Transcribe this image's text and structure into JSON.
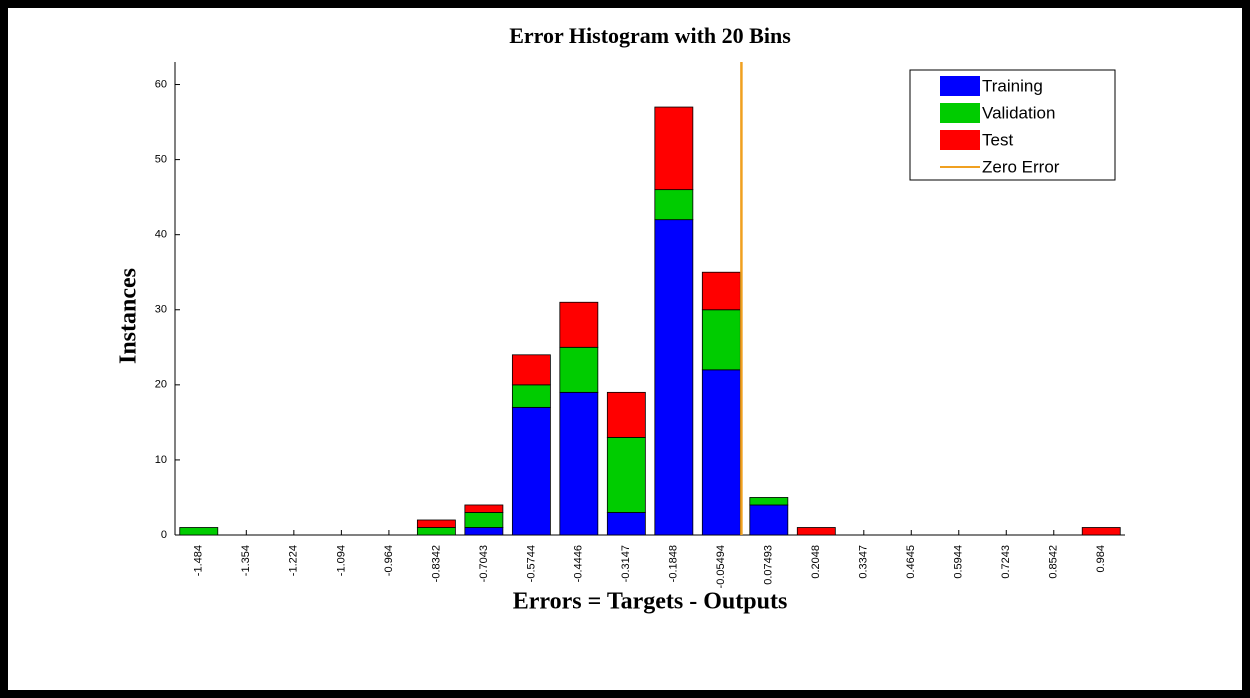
{
  "chart_data": {
    "type": "stacked_histogram",
    "title": "Error Histogram with 20 Bins",
    "xlabel": "Errors = Targets - Outputs",
    "ylabel": "Instances",
    "x": [
      -1.484,
      -1.354,
      -1.224,
      -1.094,
      -0.964,
      -0.8342,
      -0.7043,
      -0.5744,
      -0.4446,
      -0.3147,
      -0.1848,
      -0.05494,
      0.07493,
      0.2048,
      0.3347,
      0.4645,
      0.5944,
      0.7243,
      0.8542,
      0.984
    ],
    "xticks": [
      -1.484,
      -1.354,
      -1.224,
      -1.094,
      -0.964,
      -0.8342,
      -0.7043,
      -0.5744,
      -0.4446,
      -0.3147,
      -0.1848,
      -0.05494,
      0.07493,
      0.2048,
      0.3347,
      0.4645,
      0.5944,
      0.7243,
      0.8542,
      0.984
    ],
    "xlim": [
      -1.549,
      1.049
    ],
    "series": [
      {
        "name": "Training",
        "color": "#0000ff",
        "values": [
          0,
          0,
          0,
          0,
          0,
          0,
          1,
          17,
          19,
          3,
          42,
          22,
          4,
          0,
          0,
          0,
          0,
          0,
          0,
          0
        ]
      },
      {
        "name": "Validation",
        "color": "#00cc00",
        "values": [
          1,
          0,
          0,
          0,
          0,
          1,
          2,
          3,
          6,
          10,
          4,
          8,
          1,
          0,
          0,
          0,
          0,
          0,
          0,
          0
        ]
      },
      {
        "name": "Test",
        "color": "#ff0000",
        "values": [
          0,
          0,
          0,
          0,
          0,
          1,
          1,
          4,
          6,
          6,
          11,
          5,
          0,
          1,
          0,
          0,
          0,
          0,
          0,
          1
        ]
      }
    ],
    "reference_line": {
      "name": "Zero Error",
      "x": 0,
      "color": "#f0a020"
    },
    "ylim": [
      0,
      63
    ],
    "yticks": [
      0,
      10,
      20,
      30,
      40,
      50,
      60
    ],
    "legend": "upper right"
  }
}
